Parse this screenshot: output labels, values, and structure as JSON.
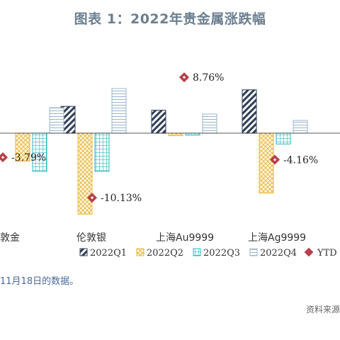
{
  "title": "图表 1：2022年贵金属涨跌幅",
  "note": "11月18日的数据。",
  "source": "资料来源",
  "chart_data": {
    "type": "bar",
    "categories": [
      "敦金",
      "伦敦银",
      "上海Au9999",
      "上海Ag9999"
    ],
    "series": [
      {
        "name": "2022Q1",
        "values": [
          0,
          4.2,
          3.6,
          6.8
        ],
        "color": "#2f3e57",
        "pattern": "diagonal-hatch"
      },
      {
        "name": "2022Q2",
        "values": [
          -4.4,
          -12.7,
          -0.4,
          -9.4
        ],
        "color": "#e8b840",
        "pattern": "cross-hatch"
      },
      {
        "name": "2022Q3",
        "values": [
          -6.0,
          -6.0,
          -0.3,
          -1.7
        ],
        "color": "#2eb8c0",
        "pattern": "grid"
      },
      {
        "name": "2022Q4",
        "values": [
          4.0,
          7.0,
          3.0,
          2.0
        ],
        "color": "#9ab4cc",
        "pattern": "horizontal-lines"
      }
    ],
    "ytd": {
      "name": "YTD",
      "values": [
        -3.79,
        -10.13,
        8.76,
        -4.16
      ],
      "labels": [
        "-3.79%",
        "-10.13%",
        "8.76%",
        "-4.16%"
      ],
      "color": "#b8404a"
    },
    "ylim": [
      -14,
      12
    ],
    "grid": false,
    "legend": "bottom"
  }
}
